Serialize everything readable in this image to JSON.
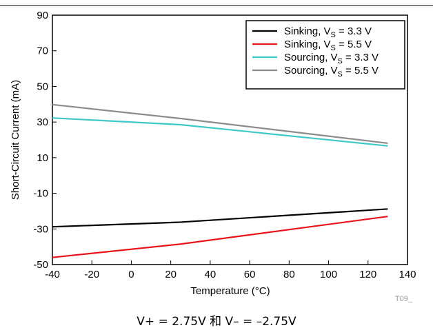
{
  "chart_data": {
    "type": "line",
    "xlabel": "Temperature (°C)",
    "ylabel": "Short-Circuit Current (mA)",
    "xlim": [
      -40,
      140
    ],
    "ylim": [
      -50,
      90
    ],
    "xticks": [
      -40,
      -20,
      0,
      20,
      40,
      60,
      80,
      100,
      120,
      140
    ],
    "yticks": [
      90,
      70,
      50,
      30,
      10,
      -10,
      -30,
      -50
    ],
    "grid": false,
    "legend_position": "top-right",
    "series": [
      {
        "name": "Sinking, V",
        "sub": "S",
        "tail": " = 3.3 V",
        "color": "#000000",
        "x": [
          -40,
          25,
          130
        ],
        "y": [
          -28.8,
          -26.2,
          -18.8
        ]
      },
      {
        "name": "Sinking, V",
        "sub": "S",
        "tail": " = 5.5 V",
        "color": "#e8141b",
        "x": [
          -40,
          25,
          130
        ],
        "y": [
          -46,
          -38.5,
          -23
        ]
      },
      {
        "name": "Sourcing, V",
        "sub": "S",
        "tail": " = 3.3 V",
        "color": "#3ec8c8",
        "x": [
          -40,
          25,
          130
        ],
        "y": [
          32.3,
          28.5,
          16.6
        ]
      },
      {
        "name": "Sourcing, V",
        "sub": "S",
        "tail": " = 5.5 V",
        "color": "#8c8c8c",
        "x": [
          -40,
          25,
          130
        ],
        "y": [
          39.8,
          32,
          18.1
        ]
      }
    ]
  },
  "figure_tag": "T09_",
  "caption": "V+ = 2.75V 和 V– = –2.75V"
}
